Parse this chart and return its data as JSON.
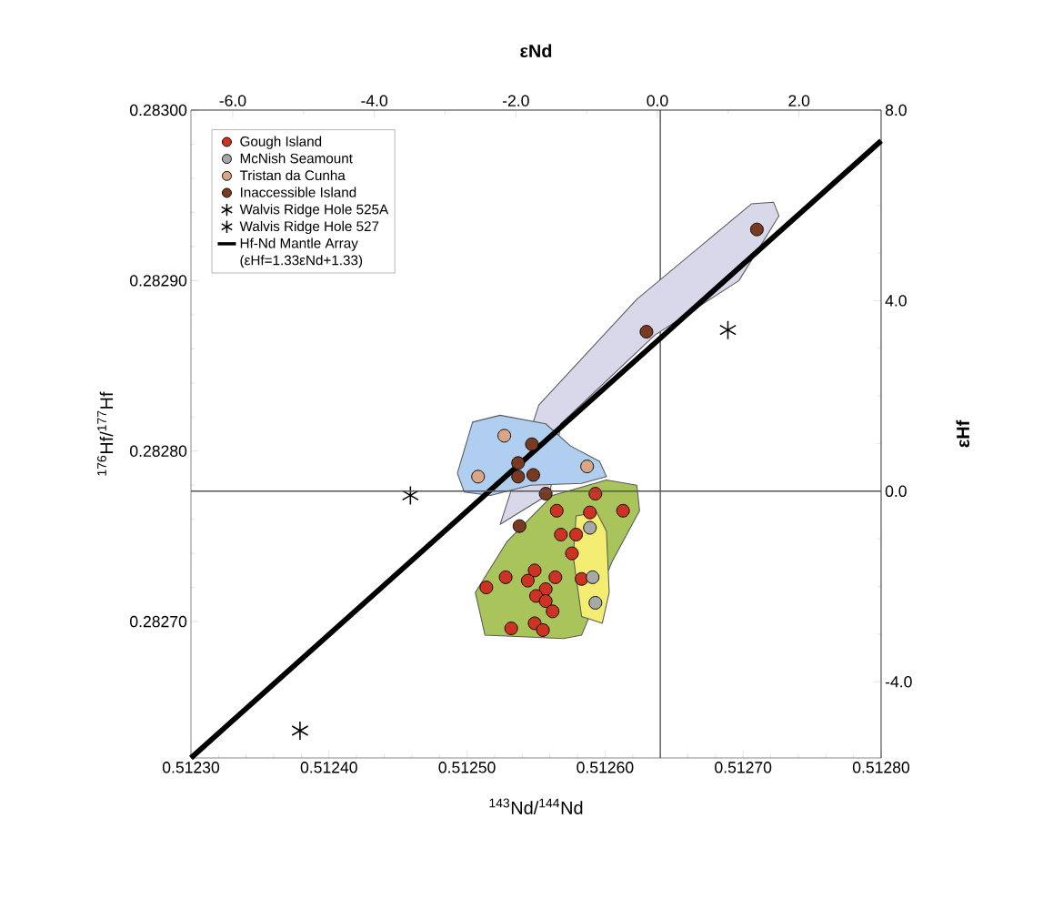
{
  "chart_data": {
    "type": "scatter",
    "xlabel": "$^{143}$Nd/$^{144}$Nd",
    "ylabel": "$^{176}$Hf/$^{177}$Hf",
    "x2label": "εNd",
    "y2label": "εHf",
    "annotations": [
      "(εHf=1.33εNd+1.33)"
    ],
    "xlim": [
      0.5123,
      0.5128
    ],
    "ylim": [
      0.28262,
      0.283
    ],
    "xticks": [
      {
        "value": 0.5123,
        "label": "0.51230"
      },
      {
        "value": 0.5124,
        "label": "0.51240"
      },
      {
        "value": 0.5125,
        "label": "0.51250"
      },
      {
        "value": 0.5126,
        "label": "0.51260"
      },
      {
        "value": 0.5127,
        "label": "0.51270"
      },
      {
        "value": 0.5128,
        "label": "0.51280"
      }
    ],
    "yticks": [
      {
        "value": 0.2827,
        "label": "0.28270"
      },
      {
        "value": 0.2828,
        "label": "0.28280"
      },
      {
        "value": 0.2829,
        "label": "0.28290"
      },
      {
        "value": 0.283,
        "label": "0.28300"
      }
    ],
    "x2lim": [
      -6.59,
      3.16
    ],
    "x2ticks": [
      {
        "value": -6,
        "label": "-6.0"
      },
      {
        "value": -4,
        "label": "-4.0"
      },
      {
        "value": -2,
        "label": "-2.0"
      },
      {
        "value": 0,
        "label": "0.0"
      },
      {
        "value": 2,
        "label": "2.0"
      }
    ],
    "y2lim": [
      -5.6,
      8.0
    ],
    "y2ticks": [
      {
        "value": -4,
        "label": "-4.0"
      },
      {
        "value": 0,
        "label": "0.0"
      },
      {
        "value": 4,
        "label": "4.0"
      },
      {
        "value": 8,
        "label": "8.0"
      }
    ],
    "legend": "top left",
    "ref_lines": [
      {
        "axis": "x",
        "value": 0.51264,
        "color": "#555555"
      },
      {
        "axis": "y2",
        "value": 0,
        "color": "#555555"
      }
    ],
    "series": [
      {
        "type": "area",
        "color": "#d8d8ea",
        "x": [
          0.512552,
          0.512623,
          0.512706,
          0.512722,
          0.512726,
          0.512697,
          0.512636,
          0.512568,
          0.51256,
          0.512524
        ],
        "values": [
          0.282827,
          0.282889,
          0.282945,
          0.282946,
          0.282938,
          0.2829,
          0.282868,
          0.282816,
          0.282775,
          0.282757
        ]
      },
      {
        "type": "area",
        "color": "#b0cff0",
        "x": [
          0.512493,
          0.512504,
          0.512524,
          0.512557,
          0.512575,
          0.512596,
          0.512601,
          0.512583,
          0.512546,
          0.512517,
          0.512498
        ],
        "values": [
          0.282787,
          0.282817,
          0.282821,
          0.282816,
          0.282803,
          0.282794,
          0.282785,
          0.282781,
          0.28278,
          0.282774,
          0.282776
        ]
      },
      {
        "type": "area",
        "color": "#a9c45a",
        "x": [
          0.512513,
          0.512506,
          0.512529,
          0.512562,
          0.512601,
          0.512623,
          0.512625,
          0.512605,
          0.512583,
          0.51257
        ],
        "values": [
          0.282692,
          0.282717,
          0.282747,
          0.282774,
          0.282783,
          0.28278,
          0.282765,
          0.282735,
          0.282692,
          0.28269
        ]
      },
      {
        "type": "area",
        "color": "#f3ee72",
        "x": [
          0.512579,
          0.512594,
          0.512601,
          0.512603,
          0.512598,
          0.512583,
          0.512577
        ],
        "values": [
          0.282762,
          0.282764,
          0.282753,
          0.282717,
          0.282699,
          0.282703,
          0.282738
        ]
      },
      {
        "name": "Gough Island",
        "marker": "circle",
        "color": "#cc3322",
        "x": [
          0.512593,
          0.512565,
          0.512589,
          0.512613,
          0.512568,
          0.512579,
          0.512576,
          0.512514,
          0.512528,
          0.512549,
          0.512564,
          0.512544,
          0.512557,
          0.51255,
          0.512557,
          0.512562,
          0.512583,
          0.512532,
          0.512549,
          0.512555
        ],
        "values": [
          0.282775,
          0.282765,
          0.282764,
          0.282765,
          0.282751,
          0.282751,
          0.28274,
          0.28272,
          0.282726,
          0.28273,
          0.282726,
          0.282724,
          0.282719,
          0.282715,
          0.282712,
          0.282706,
          0.282725,
          0.282696,
          0.282699,
          0.282695
        ]
      },
      {
        "name": "McNish Seamount",
        "marker": "circle",
        "color": "#a8a8a8",
        "x": [
          0.512589,
          0.512591,
          0.512593
        ],
        "values": [
          0.282755,
          0.282726,
          0.282711
        ]
      },
      {
        "name": "Tristan da Cunha",
        "marker": "circle",
        "color": "#dba686",
        "x": [
          0.512527,
          0.512508,
          0.512587
        ],
        "values": [
          0.282809,
          0.282785,
          0.282791
        ]
      },
      {
        "name": "Inaccessible Island",
        "marker": "circle",
        "color": "#7a3a22",
        "x": [
          0.512547,
          0.512537,
          0.512548,
          0.512537,
          0.512557,
          0.512538,
          0.51271,
          0.51263
        ],
        "values": [
          0.282804,
          0.282793,
          0.282786,
          0.282785,
          0.282775,
          0.282756,
          0.28293,
          0.28287
        ]
      },
      {
        "name": "Walvis Ridge Hole 525A",
        "marker": "cross",
        "color": "#000000",
        "x": [
          0.512459,
          0.512379
        ],
        "values": [
          0.282774,
          0.282636
        ]
      },
      {
        "name": "Walvis Ridge Hole 527",
        "marker": "cross",
        "color": "#000000",
        "x": [
          0.512689
        ],
        "values": [
          0.282871
        ]
      },
      {
        "name": "Hf-Nd Mantle Array",
        "type": "line",
        "color": "#000000",
        "x": [
          0.5123,
          0.5128
        ],
        "values": [
          0.28262,
          0.282982
        ]
      }
    ]
  }
}
